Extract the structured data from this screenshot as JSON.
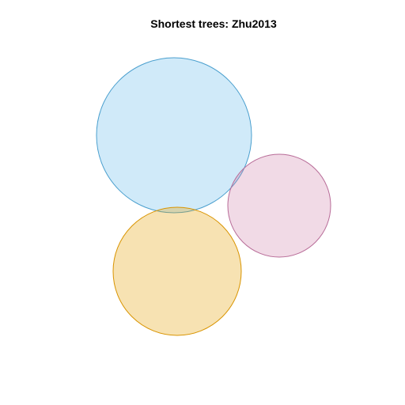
{
  "title": "Shortest trees: Zhu2013",
  "sets": [
    {
      "key": "blue",
      "fill": "#56B4E9",
      "stroke": "#4A9FCE",
      "fill_opacity": 0.28
    },
    {
      "key": "pink",
      "fill": "#CC79A7",
      "stroke": "#B86C98",
      "fill_opacity": 0.28
    },
    {
      "key": "orange",
      "fill": "#E69F00",
      "stroke": "#D99400",
      "fill_opacity": 0.3
    }
  ]
}
